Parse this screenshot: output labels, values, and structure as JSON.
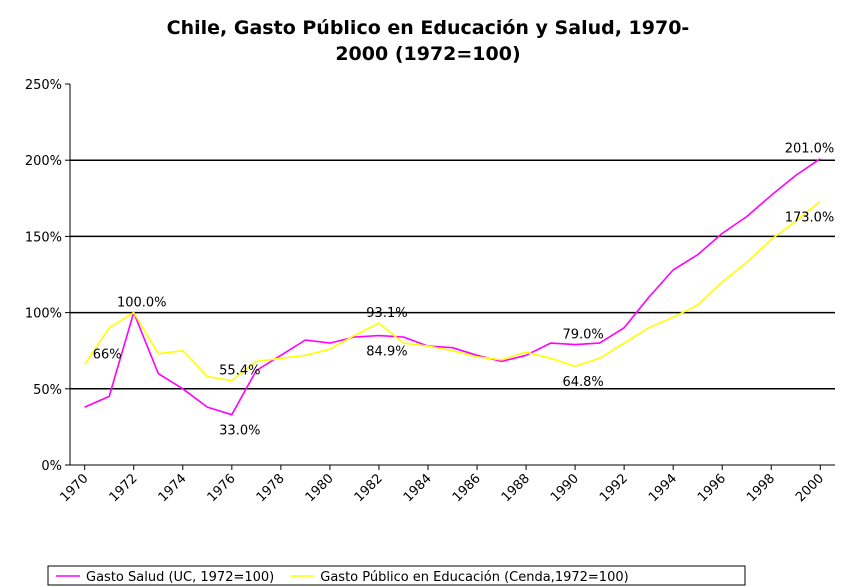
{
  "chart_data": {
    "type": "line",
    "title": [
      "Chile, Gasto Público en Educación y Salud, 1970-",
      "2000 (1972=100)"
    ],
    "x": [
      1970,
      1971,
      1972,
      1973,
      1974,
      1975,
      1976,
      1977,
      1978,
      1979,
      1980,
      1981,
      1982,
      1983,
      1984,
      1985,
      1986,
      1987,
      1988,
      1989,
      1990,
      1991,
      1992,
      1993,
      1994,
      1995,
      1996,
      1997,
      1998,
      1999,
      2000
    ],
    "xlim": [
      1969.4,
      2000.6
    ],
    "xticks": [
      1970,
      1972,
      1974,
      1976,
      1978,
      1980,
      1982,
      1984,
      1986,
      1988,
      1990,
      1992,
      1994,
      1996,
      1998,
      2000
    ],
    "ylim": [
      0,
      250
    ],
    "yticks": [
      {
        "value": 0,
        "label": "0%"
      },
      {
        "value": 50,
        "label": "50%"
      },
      {
        "value": 100,
        "label": "100%"
      },
      {
        "value": 150,
        "label": "150%"
      },
      {
        "value": 200,
        "label": "200%"
      },
      {
        "value": 250,
        "label": "250%"
      }
    ],
    "grid": true,
    "legend": "bottom",
    "series": [
      {
        "name": "Gasto Salud (UC, 1972=100)",
        "color": "#ff00ff",
        "values": [
          38,
          45,
          100,
          60,
          50,
          38,
          33,
          62,
          72,
          82,
          80,
          84,
          84.9,
          84,
          78,
          77,
          72,
          68,
          72,
          80,
          79,
          80,
          90,
          110,
          128,
          138,
          152,
          163,
          177,
          190,
          201
        ],
        "value_labels": [
          null,
          null,
          "100.0%",
          null,
          null,
          null,
          "33.0%",
          null,
          null,
          null,
          null,
          null,
          "84.9%",
          null,
          null,
          null,
          null,
          null,
          null,
          null,
          "79.0%",
          null,
          null,
          null,
          null,
          null,
          null,
          null,
          null,
          null,
          "201.0%"
        ]
      },
      {
        "name": "Gasto Público en Educación (Cenda,1972=100)",
        "color": "#ffff00",
        "values": [
          66,
          90,
          100,
          73,
          75,
          58,
          55.4,
          68,
          70,
          72,
          76,
          85,
          93.1,
          80,
          78,
          75,
          71,
          69,
          74,
          70,
          64.8,
          70,
          80,
          90,
          97,
          105,
          120,
          133,
          148,
          160,
          173
        ],
        "value_labels": [
          "66%",
          null,
          null,
          null,
          null,
          null,
          "55.4%",
          null,
          null,
          null,
          null,
          null,
          "93.1%",
          null,
          null,
          null,
          null,
          null,
          null,
          null,
          "64.8%",
          null,
          null,
          null,
          null,
          null,
          null,
          null,
          null,
          null,
          "173.0%"
        ]
      }
    ]
  }
}
